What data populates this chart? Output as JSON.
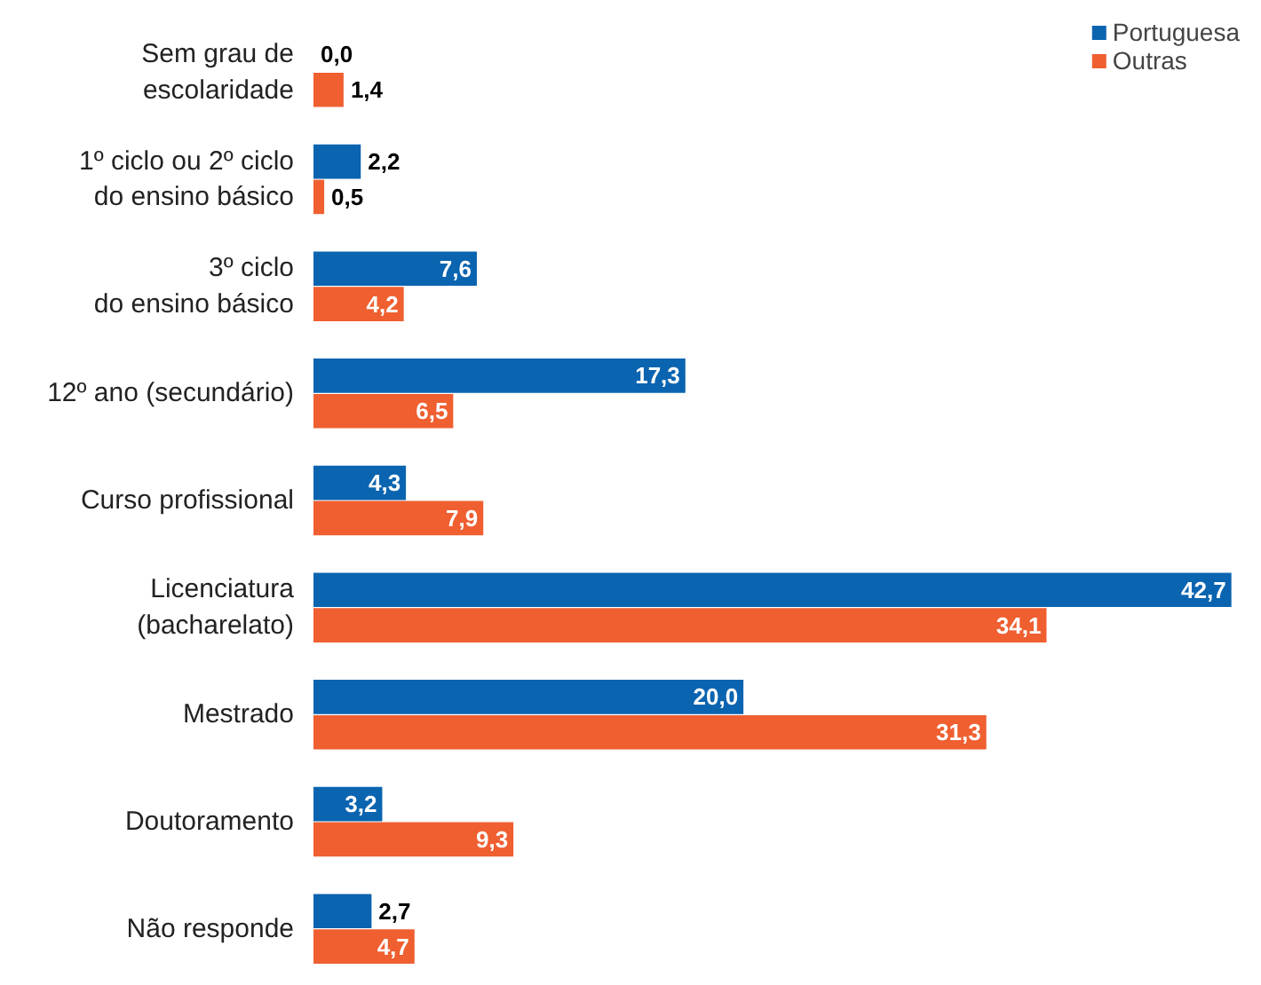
{
  "chart_data": {
    "type": "bar",
    "orientation": "horizontal",
    "categories": [
      "Sem grau de\nescolaridade",
      "1º ciclo ou 2º ciclo\ndo ensino básico",
      "3º ciclo\ndo ensino básico",
      "12º ano (secundário)",
      "Curso profissional",
      "Licenciatura\n(bacharelato)",
      "Mestrado",
      "Doutoramento",
      "Não responde"
    ],
    "series": [
      {
        "name": "Portuguesa",
        "color": "#0a64b0",
        "values": [
          0.0,
          2.2,
          7.6,
          17.3,
          4.3,
          42.7,
          20.0,
          3.2,
          2.7
        ],
        "value_labels": [
          "0,0",
          "2,2",
          "7,6",
          "17,3",
          "4,3",
          "42,7",
          "20,0",
          "3,2",
          "2,7"
        ]
      },
      {
        "name": "Outras",
        "color": "#ef5f30",
        "values": [
          1.4,
          0.5,
          4.2,
          6.5,
          7.9,
          34.1,
          31.3,
          9.3,
          4.7
        ],
        "value_labels": [
          "1,4",
          "0,5",
          "4,2",
          "6,5",
          "7,9",
          "34,1",
          "31,3",
          "9,3",
          "4,7"
        ]
      }
    ],
    "legend": "top right"
  }
}
